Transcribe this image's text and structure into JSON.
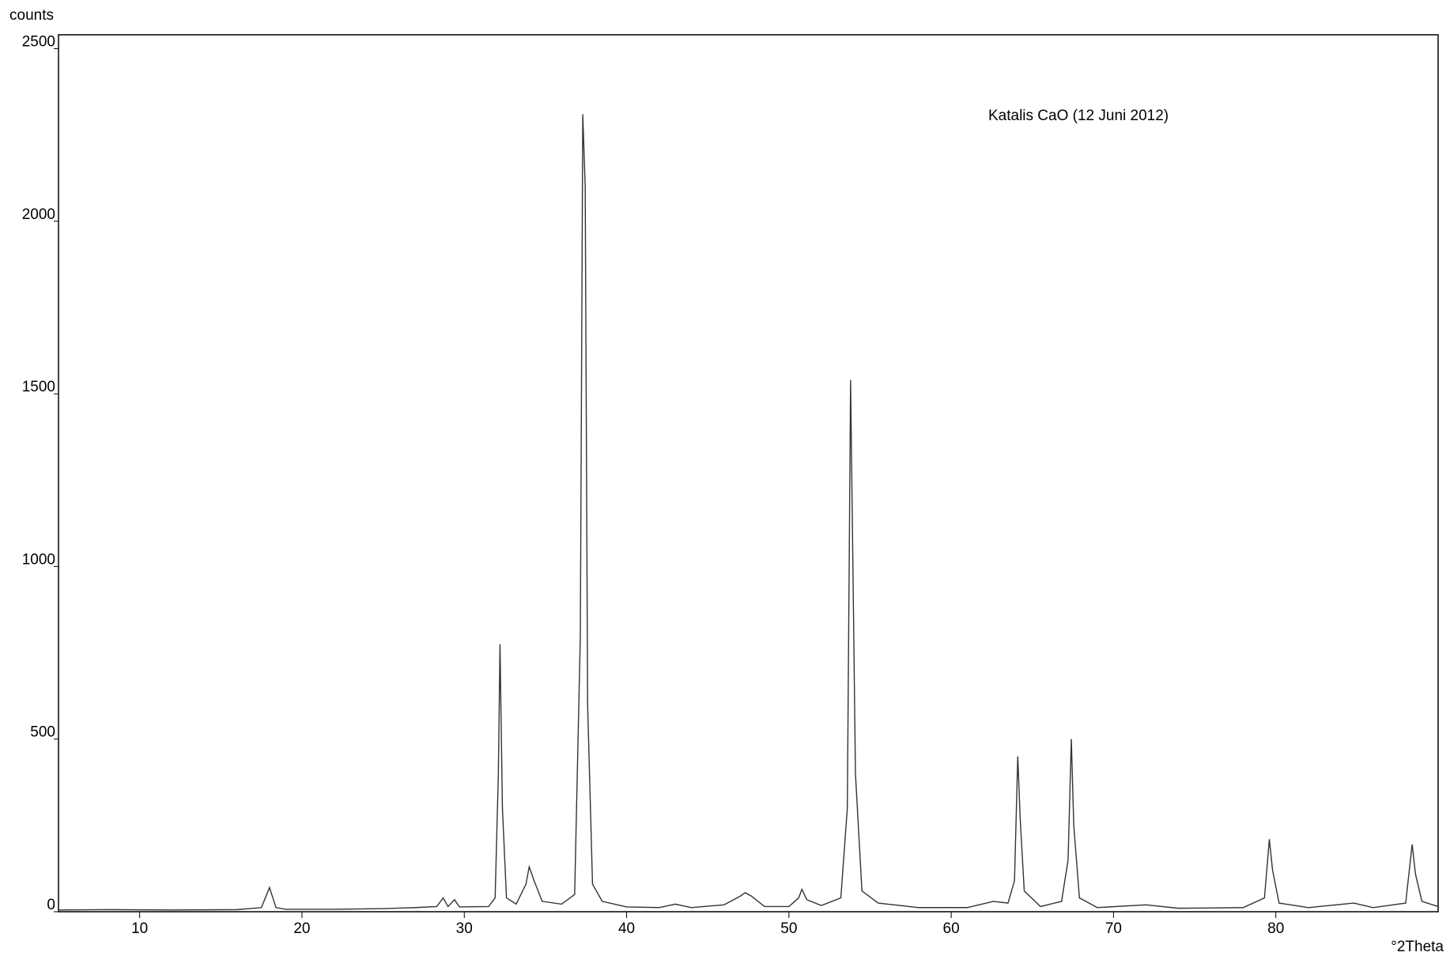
{
  "chart_data": {
    "type": "line",
    "y_label": "counts",
    "x_label": "°2Theta",
    "annotation": "Katalis CaO (12 Juni 2012)",
    "xlim": [
      5,
      90
    ],
    "ylim": [
      0,
      2540
    ],
    "xticks": [
      10,
      20,
      30,
      40,
      50,
      60,
      70,
      80
    ],
    "yticks": [
      0,
      500,
      1000,
      1500,
      2000,
      2500
    ],
    "grid": false,
    "series": [
      {
        "color": "#333333",
        "x": [
          5,
          8,
          12,
          16,
          17.5,
          18.0,
          18.4,
          19,
          22,
          25,
          27,
          28.3,
          28.7,
          29.0,
          29.4,
          29.7,
          31.5,
          31.9,
          32.1,
          32.2,
          32.35,
          32.6,
          33.2,
          33.8,
          34.0,
          34.3,
          34.8,
          36.0,
          36.8,
          37.15,
          37.3,
          37.45,
          37.6,
          37.9,
          38.5,
          40,
          42,
          43,
          44,
          46,
          47.0,
          47.3,
          47.7,
          48.5,
          50,
          50.6,
          50.8,
          51.1,
          52,
          53.2,
          53.6,
          53.8,
          53.95,
          54.1,
          54.5,
          55.5,
          58,
          61,
          62.6,
          63.5,
          63.9,
          64.1,
          64.25,
          64.5,
          65.5,
          66.8,
          67.2,
          67.4,
          67.55,
          67.9,
          69,
          72,
          74,
          78,
          79.3,
          79.6,
          79.8,
          80.2,
          82,
          84.8,
          86,
          88,
          88.4,
          88.6,
          89,
          90
        ],
        "values": [
          5,
          6,
          5,
          6,
          12,
          70,
          12,
          7,
          7,
          9,
          12,
          15,
          40,
          15,
          35,
          14,
          15,
          40,
          400,
          775,
          300,
          40,
          22,
          80,
          130,
          90,
          30,
          22,
          50,
          800,
          2310,
          2100,
          600,
          80,
          30,
          14,
          12,
          22,
          12,
          20,
          45,
          55,
          45,
          15,
          15,
          40,
          65,
          35,
          18,
          40,
          300,
          1540,
          980,
          400,
          60,
          25,
          12,
          12,
          30,
          25,
          90,
          450,
          270,
          60,
          15,
          30,
          150,
          500,
          250,
          40,
          12,
          20,
          10,
          12,
          40,
          210,
          120,
          25,
          12,
          25,
          12,
          25,
          195,
          110,
          30,
          15
        ]
      }
    ]
  }
}
